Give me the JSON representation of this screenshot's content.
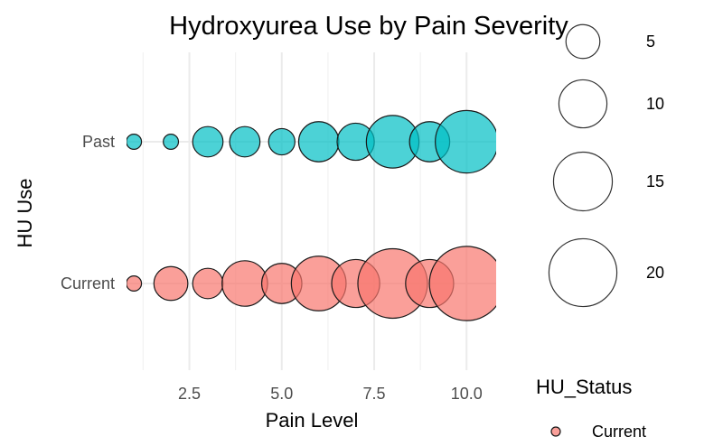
{
  "chart_data": {
    "type": "scatter",
    "title": "Hydroxyurea Use by Pain Severity",
    "xlabel": "Pain Level",
    "ylabel": "HU Use",
    "xlim": [
      0.8,
      10.8
    ],
    "x_ticks": [
      2.5,
      5.0,
      7.5,
      10.0
    ],
    "x_tick_labels": [
      "2.5",
      "5.0",
      "7.5",
      "10.0"
    ],
    "y_categories": [
      "Current",
      "Past"
    ],
    "grid": true,
    "series": [
      {
        "name": "Past",
        "color": "#00bfc4",
        "points": [
          {
            "x": 1,
            "size": 1
          },
          {
            "x": 2,
            "size": 1
          },
          {
            "x": 3,
            "size": 4
          },
          {
            "x": 4,
            "size": 4
          },
          {
            "x": 5,
            "size": 3
          },
          {
            "x": 6,
            "size": 7
          },
          {
            "x": 7,
            "size": 6
          },
          {
            "x": 8,
            "size": 12
          },
          {
            "x": 9,
            "size": 7
          },
          {
            "x": 10,
            "size": 17
          }
        ]
      },
      {
        "name": "Current",
        "color": "#f8766d",
        "points": [
          {
            "x": 1,
            "size": 1
          },
          {
            "x": 2,
            "size": 5
          },
          {
            "x": 3,
            "size": 4
          },
          {
            "x": 4,
            "size": 9
          },
          {
            "x": 5,
            "size": 7
          },
          {
            "x": 6,
            "size": 13
          },
          {
            "x": 7,
            "size": 10
          },
          {
            "x": 8,
            "size": 21
          },
          {
            "x": 9,
            "size": 10
          },
          {
            "x": 10,
            "size": 24
          }
        ]
      }
    ],
    "size_legend": {
      "values": [
        "5",
        "10",
        "15",
        "20"
      ],
      "sizes": [
        5,
        10,
        15,
        20
      ]
    },
    "color_legend": {
      "title": "HU_Status",
      "items": [
        {
          "label": "Current",
          "color": "#f8766d"
        }
      ]
    }
  }
}
